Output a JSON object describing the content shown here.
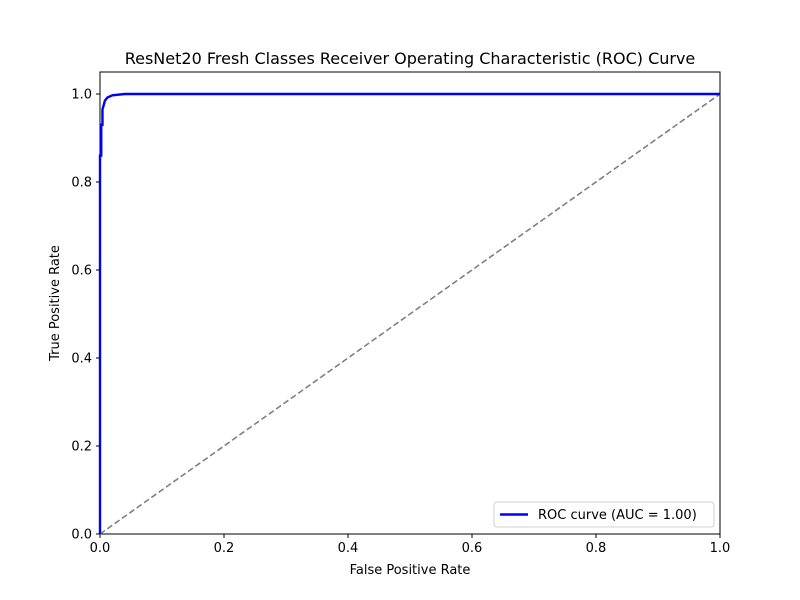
{
  "chart_data": {
    "type": "line",
    "title": "ResNet20 Fresh Classes Receiver Operating Characteristic (ROC) Curve",
    "xlabel": "False Positive Rate",
    "ylabel": "True Positive Rate",
    "xlim": [
      0.0,
      1.0
    ],
    "ylim": [
      0.0,
      1.05
    ],
    "x_ticks": [
      {
        "value": 0.0,
        "label": "0.0"
      },
      {
        "value": 0.2,
        "label": "0.2"
      },
      {
        "value": 0.4,
        "label": "0.4"
      },
      {
        "value": 0.6,
        "label": "0.6"
      },
      {
        "value": 0.8,
        "label": "0.8"
      },
      {
        "value": 1.0,
        "label": "1.0"
      }
    ],
    "y_ticks": [
      {
        "value": 0.0,
        "label": "0.0"
      },
      {
        "value": 0.2,
        "label": "0.2"
      },
      {
        "value": 0.4,
        "label": "0.4"
      },
      {
        "value": 0.6,
        "label": "0.6"
      },
      {
        "value": 0.8,
        "label": "0.8"
      },
      {
        "value": 1.0,
        "label": "1.0"
      }
    ],
    "grid": false,
    "legend_position": "lower-right",
    "series": [
      {
        "name": "ROC curve (AUC = 1.00)",
        "color": "#0000ff",
        "style": "solid",
        "x": [
          0.0,
          0.0,
          0.002,
          0.002,
          0.004,
          0.004,
          0.006,
          0.008,
          0.012,
          0.02,
          0.04,
          1.0
        ],
        "y": [
          0.0,
          0.86,
          0.86,
          0.93,
          0.93,
          0.965,
          0.975,
          0.985,
          0.992,
          0.997,
          1.0,
          1.0
        ]
      },
      {
        "color": "#808080",
        "style": "dashed",
        "x": [
          0.0,
          1.0
        ],
        "y": [
          0.0,
          1.0
        ]
      }
    ]
  }
}
